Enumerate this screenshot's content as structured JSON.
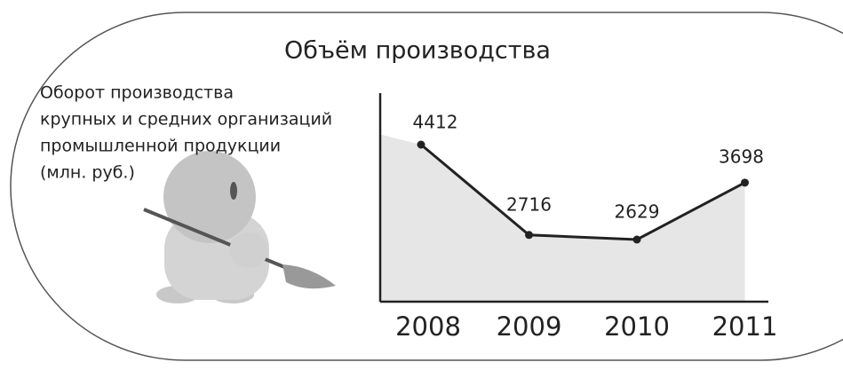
{
  "chart_data": {
    "type": "line",
    "title": "Объём производства",
    "description": [
      "Оборот производства",
      "крупных и средних организаций",
      "промышленной продукции",
      "(млн. руб.)"
    ],
    "categories": [
      "2008",
      "2009",
      "2010",
      "2011"
    ],
    "values": [
      4412,
      2716,
      2629,
      3698
    ],
    "color": "#222222",
    "area_color": "#e6e6e6"
  }
}
